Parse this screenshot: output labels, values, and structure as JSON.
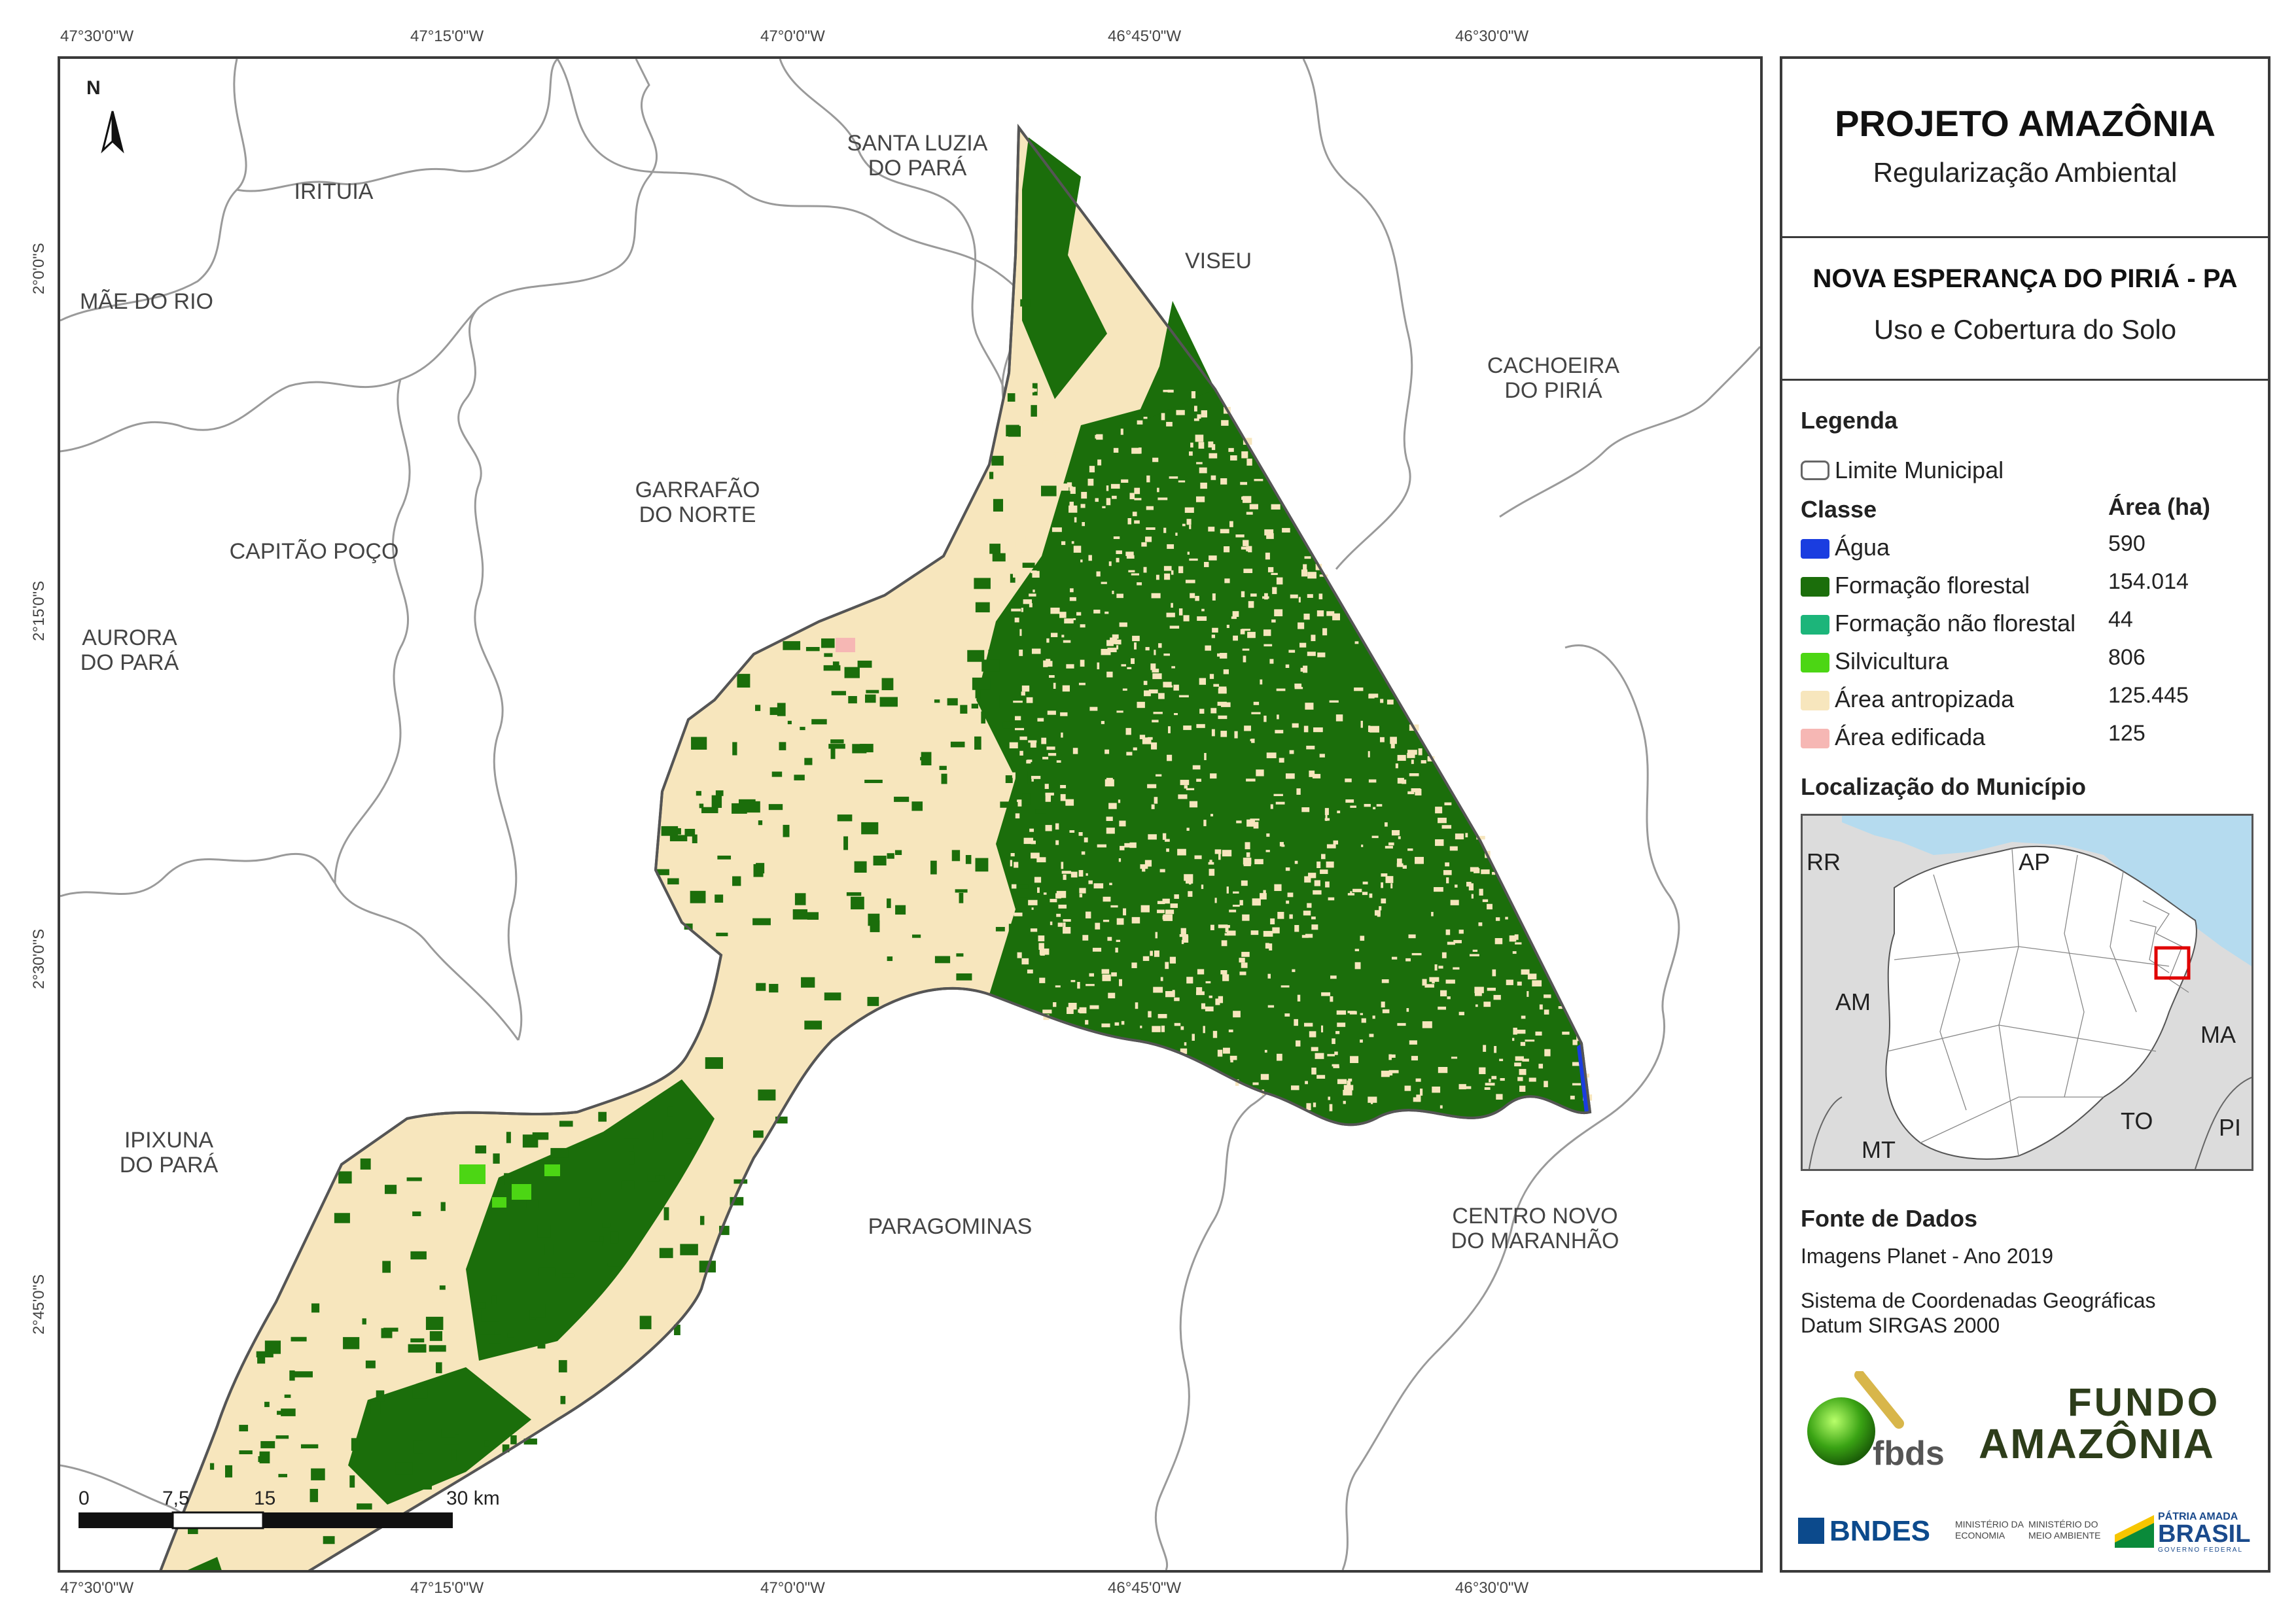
{
  "map": {
    "top_ticks": [
      "47°30'0\"W",
      "47°15'0\"W",
      "47°0'0\"W",
      "46°45'0\"W",
      "46°30'0\"W"
    ],
    "bottom_ticks": [
      "47°30'0\"W",
      "47°15'0\"W",
      "47°0'0\"W",
      "46°45'0\"W",
      "46°30'0\"W"
    ],
    "left_ticks": [
      "2°0'0\"S",
      "2°15'0\"S",
      "2°30'0\"S",
      "2°45'0\"S"
    ],
    "north_label": "N",
    "places": [
      {
        "name": "IRITUIA"
      },
      {
        "name": "SANTA LUZIA\nDO PARÁ"
      },
      {
        "name": "VISEU"
      },
      {
        "name": "MÃE DO RIO"
      },
      {
        "name": "CACHOEIRA\nDO PIRIÁ"
      },
      {
        "name": "GARRAFÃO\nDO NORTE"
      },
      {
        "name": "CAPITÃO POÇO"
      },
      {
        "name": "AURORA\nDO PARÁ"
      },
      {
        "name": "IPIXUNA\nDO PARÁ"
      },
      {
        "name": "PARAGOMINAS"
      },
      {
        "name": "CENTRO NOVO\nDO MARANHÃO"
      }
    ],
    "scale": {
      "labels": [
        "0",
        "7,5",
        "15",
        "30 km"
      ]
    }
  },
  "panel": {
    "title": "PROJETO AMAZÔNIA",
    "subtitle": "Regularização Ambiental",
    "municipality": "NOVA ESPERANÇA DO PIRIÁ - PA",
    "theme": "Uso e Cobertura do Solo",
    "legend_title": "Legenda",
    "limit_label": "Limite Municipal",
    "class_header": "Classe",
    "area_header": "Área (ha)",
    "classes": [
      {
        "name": "Água",
        "area": "590",
        "color": "#1a3de0"
      },
      {
        "name": "Formação florestal",
        "area": "154.014",
        "color": "#1b6e0b"
      },
      {
        "name": "Formação não florestal",
        "area": "44",
        "color": "#1cb57a"
      },
      {
        "name": "Silvicultura",
        "area": "806",
        "color": "#4cd614"
      },
      {
        "name": "Área antropizada",
        "area": "125.445",
        "color": "#f7e6bd"
      },
      {
        "name": "Área edificada",
        "area": "125",
        "color": "#f6b7b4"
      }
    ],
    "location_title": "Localização do Município",
    "inset_labels": [
      "RR",
      "AP",
      "AM",
      "MA",
      "TO",
      "MT",
      "PI"
    ],
    "sources_title": "Fonte de Dados",
    "source_text": "Imagens Planet - Ano 2019",
    "crs_line1": "Sistema de Coordenadas Geográficas",
    "crs_line2": "Datum SIRGAS 2000",
    "logos": {
      "fbds": "fbds",
      "fundo_line1": "FUNDO",
      "fundo_line2": "AMAZÔNIA",
      "bndes": "BNDES",
      "min_eco_1": "MINISTÉRIO DA",
      "min_eco_2": "ECONOMIA",
      "min_env_1": "MINISTÉRIO DO",
      "min_env_2": "MEIO AMBIENTE",
      "patria_1": "PÁTRIA AMADA",
      "patria_2": "BRASIL",
      "patria_3": "GOVERNO FEDERAL"
    },
    "colors": {
      "water": "#b5dbef",
      "inset_land": "#dcdcdc",
      "highlight": "#e00000"
    }
  }
}
